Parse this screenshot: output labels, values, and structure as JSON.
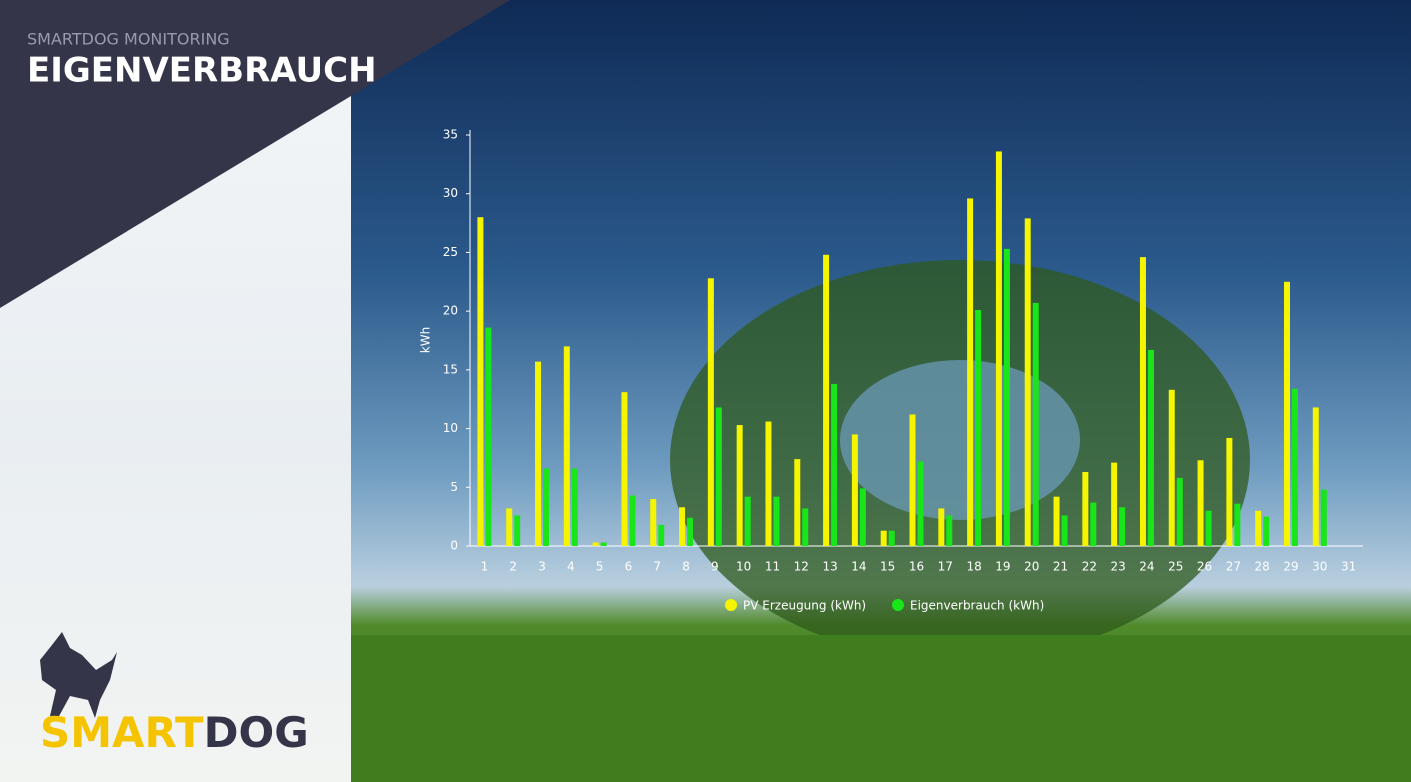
{
  "header": {
    "subtitle": "SMARTDOG MONITORING",
    "title": "EIGENVERBRAUCH"
  },
  "logo": {
    "part1": "SMART",
    "part2": "DOG"
  },
  "chart_data": {
    "type": "bar",
    "y_label": "kWh",
    "categories": [
      "1",
      "2",
      "3",
      "4",
      "5",
      "6",
      "7",
      "8",
      "9",
      "10",
      "11",
      "12",
      "13",
      "14",
      "15",
      "16",
      "17",
      "18",
      "19",
      "20",
      "21",
      "22",
      "23",
      "24",
      "25",
      "26",
      "27",
      "28",
      "29",
      "30",
      "31"
    ],
    "series": [
      {
        "name": "PV Erzeugung (kWh)",
        "color": "#f5f500",
        "values": [
          28,
          3.2,
          15.7,
          17.0,
          0.3,
          13.1,
          4.0,
          3.3,
          22.8,
          10.3,
          10.6,
          7.4,
          24.8,
          9.5,
          1.3,
          11.2,
          3.2,
          29.6,
          33.6,
          27.9,
          4.2,
          6.3,
          7.1,
          24.6,
          13.3,
          7.3,
          9.2,
          3.0,
          22.5,
          11.8,
          null
        ]
      },
      {
        "name": "Eigenverbrauch (kWh)",
        "color": "#19e619",
        "values": [
          18.6,
          2.6,
          6.6,
          6.6,
          0.3,
          4.3,
          1.8,
          2.4,
          11.8,
          4.2,
          4.2,
          3.2,
          13.8,
          4.9,
          1.3,
          7.2,
          2.6,
          20.1,
          25.3,
          20.7,
          2.6,
          3.7,
          3.3,
          16.7,
          5.8,
          3.0,
          3.6,
          2.5,
          13.4,
          4.8,
          null
        ]
      }
    ],
    "ylim": [
      0,
      35
    ],
    "yticks": [
      0,
      5,
      10,
      15,
      20,
      25,
      30,
      35
    ]
  }
}
